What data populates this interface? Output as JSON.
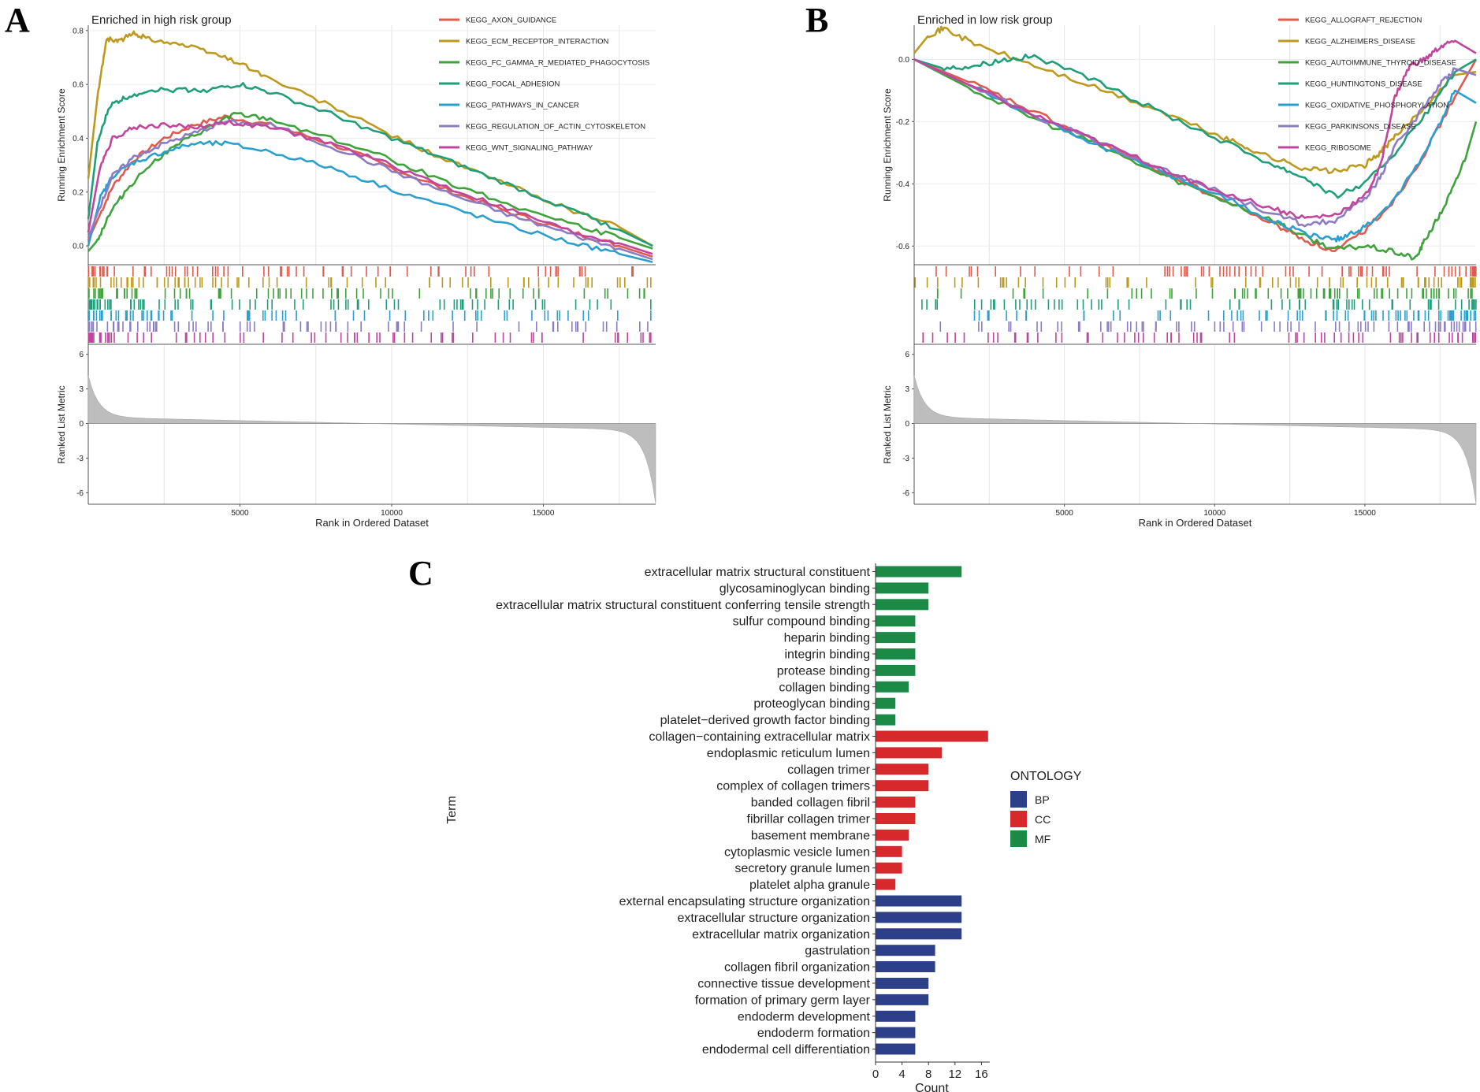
{
  "chart_data": [
    {
      "panel": "A",
      "type": "line",
      "title": "Enriched in high risk group",
      "ylabel_top": "Running Enrichment Score",
      "ylabel_bottom": "Ranked List Metric",
      "xlabel": "Rank in Ordered Dataset",
      "xlim": [
        0,
        18700
      ],
      "ylim_es": [
        -0.07,
        0.82
      ],
      "es_ticks": [
        "0.0",
        "0.2",
        "0.4",
        "0.6",
        "0.8"
      ],
      "metric_ticks": [
        "-6",
        "-3",
        "0",
        "3",
        "6"
      ],
      "x_ticks": [
        "5000",
        "10000",
        "15000"
      ],
      "series": [
        {
          "name": "KEGG_AXON_GUIDANCE",
          "color": "#e05a4e",
          "x": [
            0,
            400,
            800,
            1500,
            2500,
            3500,
            4500,
            6000,
            8000,
            10000,
            12000,
            14000,
            16000,
            17500,
            18600
          ],
          "y": [
            0.02,
            0.12,
            0.22,
            0.32,
            0.4,
            0.45,
            0.48,
            0.45,
            0.38,
            0.29,
            0.2,
            0.12,
            0.05,
            0.0,
            -0.04
          ]
        },
        {
          "name": "KEGG_ECM_RECEPTOR_INTERACTION",
          "color": "#bd9a1e",
          "x": [
            0,
            300,
            600,
            1000,
            1500,
            2000,
            3000,
            4000,
            5000,
            6000,
            8000,
            10000,
            12000,
            14000,
            16000,
            17500,
            18600
          ],
          "y": [
            0.25,
            0.55,
            0.77,
            0.76,
            0.79,
            0.77,
            0.75,
            0.72,
            0.68,
            0.62,
            0.52,
            0.41,
            0.31,
            0.22,
            0.13,
            0.07,
            0.0
          ]
        },
        {
          "name": "KEGG_FC_GAMMA_R_MEDIATED_PHAGOCYTOSIS",
          "color": "#3fa33c",
          "x": [
            0,
            300,
            700,
            1200,
            2000,
            3000,
            4000,
            4800,
            6000,
            8000,
            10000,
            12000,
            14000,
            16000,
            17500,
            18600
          ],
          "y": [
            -0.02,
            0.02,
            0.12,
            0.2,
            0.3,
            0.38,
            0.44,
            0.49,
            0.47,
            0.4,
            0.32,
            0.23,
            0.15,
            0.08,
            0.03,
            -0.01
          ]
        },
        {
          "name": "KEGG_FOCAL_ADHESION",
          "color": "#1f9e7a",
          "x": [
            0,
            300,
            700,
            1200,
            2000,
            3000,
            4000,
            5000,
            6000,
            8000,
            10000,
            12000,
            14000,
            16000,
            17500,
            18600
          ],
          "y": [
            0.1,
            0.38,
            0.52,
            0.55,
            0.58,
            0.58,
            0.58,
            0.6,
            0.57,
            0.49,
            0.4,
            0.31,
            0.22,
            0.13,
            0.06,
            0.0
          ]
        },
        {
          "name": "KEGG_PATHWAYS_IN_CANCER",
          "color": "#2a9fd0",
          "x": [
            0,
            400,
            800,
            1500,
            2500,
            3500,
            4500,
            6000,
            8000,
            10000,
            12000,
            14000,
            16000,
            17500,
            18600
          ],
          "y": [
            0.0,
            0.18,
            0.26,
            0.31,
            0.35,
            0.38,
            0.38,
            0.35,
            0.29,
            0.21,
            0.14,
            0.07,
            0.01,
            -0.03,
            -0.06
          ]
        },
        {
          "name": "KEGG_REGULATION_OF_ACTIN_CYTOSKELETON",
          "color": "#8d7cc3",
          "x": [
            0,
            400,
            800,
            1500,
            2500,
            3500,
            4500,
            6000,
            8000,
            10000,
            12000,
            14000,
            16000,
            17500,
            18600
          ],
          "y": [
            0.03,
            0.15,
            0.26,
            0.33,
            0.38,
            0.42,
            0.46,
            0.45,
            0.37,
            0.28,
            0.19,
            0.11,
            0.04,
            -0.01,
            -0.05
          ]
        },
        {
          "name": "KEGG_WNT_SIGNALING_PATHWAY",
          "color": "#c2459d",
          "x": [
            0,
            400,
            800,
            1500,
            2500,
            3500,
            4500,
            6000,
            8000,
            10000,
            12000,
            14000,
            16000,
            17500,
            18600
          ],
          "y": [
            0.05,
            0.3,
            0.4,
            0.44,
            0.45,
            0.44,
            0.46,
            0.44,
            0.38,
            0.3,
            0.21,
            0.13,
            0.05,
            0.01,
            -0.03
          ]
        }
      ]
    },
    {
      "panel": "B",
      "type": "line",
      "title": "Enriched in low risk group",
      "ylabel_top": "Running Enrichment Score",
      "ylabel_bottom": "Ranked List Metric",
      "xlabel": "Rank in Ordered Dataset",
      "xlim": [
        0,
        18700
      ],
      "ylim_es": [
        -0.66,
        0.11
      ],
      "es_ticks": [
        "-0.6",
        "-0.4",
        "-0.2",
        "0.0"
      ],
      "metric_ticks": [
        "-6",
        "-3",
        "0",
        "3",
        "6"
      ],
      "x_ticks": [
        "5000",
        "10000",
        "15000"
      ],
      "series": [
        {
          "name": "KEGG_ALLOGRAFT_REJECTION",
          "color": "#e05a4e",
          "x": [
            0,
            2000,
            4000,
            6000,
            8000,
            10000,
            12000,
            13000,
            14000,
            15000,
            16000,
            17000,
            18000,
            18700
          ],
          "y": [
            0.0,
            -0.08,
            -0.17,
            -0.26,
            -0.35,
            -0.44,
            -0.53,
            -0.58,
            -0.62,
            -0.55,
            -0.45,
            -0.3,
            -0.12,
            0.0
          ]
        },
        {
          "name": "KEGG_ALZHEIMERS_DISEASE",
          "color": "#bd9a1e",
          "x": [
            0,
            500,
            1000,
            2000,
            4000,
            6000,
            8000,
            10000,
            11000,
            12000,
            13000,
            14000,
            15000,
            15500,
            16000,
            17000,
            18000,
            18700
          ],
          "y": [
            0.02,
            0.08,
            0.1,
            0.05,
            -0.02,
            -0.09,
            -0.16,
            -0.24,
            -0.28,
            -0.32,
            -0.35,
            -0.36,
            -0.34,
            -0.3,
            -0.25,
            -0.15,
            -0.05,
            -0.04
          ]
        },
        {
          "name": "KEGG_AUTOIMMUNE_THYROID_DISEASE",
          "color": "#3fa33c",
          "x": [
            0,
            2000,
            4000,
            6000,
            8000,
            10000,
            12000,
            13000,
            14000,
            15000,
            16000,
            16700,
            17000,
            17500,
            18000,
            18400,
            18700
          ],
          "y": [
            0.0,
            -0.1,
            -0.19,
            -0.27,
            -0.36,
            -0.44,
            -0.52,
            -0.57,
            -0.61,
            -0.6,
            -0.62,
            -0.64,
            -0.58,
            -0.5,
            -0.4,
            -0.3,
            -0.2
          ]
        },
        {
          "name": "KEGG_HUNTINGTONS_DISEASE",
          "color": "#1f9e7a",
          "x": [
            0,
            1000,
            2000,
            3000,
            4000,
            6000,
            8000,
            10000,
            12000,
            13000,
            14000,
            15000,
            16000,
            17000,
            18000,
            18700
          ],
          "y": [
            0.0,
            -0.03,
            -0.02,
            0.0,
            0.01,
            -0.07,
            -0.16,
            -0.25,
            -0.34,
            -0.38,
            -0.44,
            -0.4,
            -0.3,
            -0.18,
            -0.04,
            0.0
          ]
        },
        {
          "name": "KEGG_OXIDATIVE_PHOSPHORYLATION",
          "color": "#2a9fd0",
          "x": [
            0,
            2000,
            4000,
            6000,
            8000,
            10000,
            12000,
            13000,
            14000,
            14500,
            15000,
            16000,
            17000,
            17500,
            18000,
            18700
          ],
          "y": [
            0.0,
            -0.09,
            -0.18,
            -0.27,
            -0.35,
            -0.43,
            -0.52,
            -0.56,
            -0.58,
            -0.56,
            -0.54,
            -0.45,
            -0.3,
            -0.2,
            -0.1,
            -0.14
          ]
        },
        {
          "name": "KEGG_PARKINSONS_DISEASE",
          "color": "#8d7cc3",
          "x": [
            0,
            2000,
            4000,
            6000,
            8000,
            10000,
            12000,
            13000,
            14000,
            15000,
            15500,
            16000,
            17000,
            17500,
            18000,
            18700
          ],
          "y": [
            0.0,
            -0.09,
            -0.18,
            -0.26,
            -0.34,
            -0.42,
            -0.5,
            -0.53,
            -0.52,
            -0.45,
            -0.38,
            -0.28,
            -0.15,
            -0.08,
            -0.03,
            -0.05
          ]
        },
        {
          "name": "KEGG_RIBOSOME",
          "color": "#c2459d",
          "x": [
            0,
            2000,
            4000,
            6000,
            8000,
            10000,
            12000,
            13000,
            14000,
            15000,
            15500,
            16000,
            16500,
            17000,
            17500,
            18000,
            18700
          ],
          "y": [
            0.0,
            -0.09,
            -0.18,
            -0.26,
            -0.34,
            -0.42,
            -0.48,
            -0.51,
            -0.5,
            -0.44,
            -0.35,
            -0.12,
            -0.02,
            0.0,
            0.04,
            0.06,
            0.02
          ]
        }
      ]
    },
    {
      "panel": "C",
      "type": "bar",
      "orientation": "horizontal",
      "xlabel": "Count",
      "ylabel": "Term",
      "xlim": [
        0,
        17
      ],
      "x_ticks": [
        0,
        4,
        8,
        12,
        16
      ],
      "legend_title": "ONTOLOGY",
      "legend": [
        {
          "name": "BP",
          "color": "#2e3f8a"
        },
        {
          "name": "CC",
          "color": "#d7282b"
        },
        {
          "name": "MF",
          "color": "#1b8a46"
        }
      ],
      "categories": [
        "extracellular matrix structural constituent",
        "glycosaminoglycan binding",
        "extracellular matrix structural constituent conferring tensile strength",
        "sulfur compound binding",
        "heparin binding",
        "integrin binding",
        "protease binding",
        "collagen binding",
        "proteoglycan binding",
        "platelet−derived growth factor binding",
        "collagen−containing extracellular matrix",
        "endoplasmic reticulum lumen",
        "collagen trimer",
        "complex of collagen trimers",
        "banded collagen fibril",
        "fibrillar collagen trimer",
        "basement membrane",
        "cytoplasmic vesicle lumen",
        "secretory granule lumen",
        "platelet alpha granule",
        "external encapsulating structure organization",
        "extracellular structure organization",
        "extracellular matrix organization",
        "gastrulation",
        "collagen fibril organization",
        "connective tissue development",
        "formation of primary germ layer",
        "endoderm development",
        "endoderm formation",
        "endodermal cell differentiation"
      ],
      "values": [
        13,
        8,
        8,
        6,
        6,
        6,
        6,
        5,
        3,
        3,
        17,
        10,
        8,
        8,
        6,
        6,
        5,
        4,
        4,
        3,
        13,
        13,
        13,
        9,
        9,
        8,
        8,
        6,
        6,
        6
      ],
      "groups": [
        "MF",
        "MF",
        "MF",
        "MF",
        "MF",
        "MF",
        "MF",
        "MF",
        "MF",
        "MF",
        "CC",
        "CC",
        "CC",
        "CC",
        "CC",
        "CC",
        "CC",
        "CC",
        "CC",
        "CC",
        "BP",
        "BP",
        "BP",
        "BP",
        "BP",
        "BP",
        "BP",
        "BP",
        "BP",
        "BP"
      ]
    }
  ],
  "panel_labels": {
    "a": "A",
    "b": "B",
    "c": "C"
  }
}
